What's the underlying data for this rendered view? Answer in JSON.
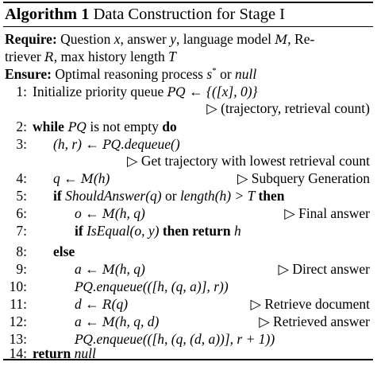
{
  "title": {
    "label": "Algorithm 1",
    "text": "Data Construction for Stage I"
  },
  "require": {
    "keyword": "Require:",
    "line1": {
      "t1": "Question ",
      "x": "x",
      "t2": ", answer ",
      "y": "y",
      "t3": ", language model ",
      "M": "M",
      "t4": ", Re-"
    },
    "line2": {
      "t1": "triever ",
      "R": "R",
      "t2": ", max history length ",
      "T": "T"
    }
  },
  "ensure": {
    "keyword": "Ensure:",
    "t1": "Optimal reasoning process ",
    "s": "s",
    "star": "*",
    "t2": " or ",
    "null": "null"
  },
  "lines": {
    "l1": {
      "num": "1:",
      "text": "Initialize priority queue ",
      "PQ": "PQ",
      "expr": " ← {([x], 0)}",
      "comment": "▷ (trajectory, retrieval count)"
    },
    "l2": {
      "num": "2:",
      "kw1": "while",
      "PQ": " PQ",
      "mid": " is not empty ",
      "kw2": "do"
    },
    "l3": {
      "num": "3:",
      "lhs": "(h, r) ← ",
      "PQ": "PQ",
      "rhs": ".dequeue()",
      "comment": "▷ Get trajectory with lowest retrieval count"
    },
    "l4": {
      "num": "4:",
      "lhs": "q ← ",
      "M": "M",
      "rhs": "(h)",
      "comment": "▷ Subquery Generation"
    },
    "l5": {
      "num": "5:",
      "kw1": "if",
      "fn1": " ShouldAnswer",
      "a1": "(q)",
      "or": " or ",
      "fn2": "length",
      "a2": "(h) > T ",
      "kw2": "then"
    },
    "l6": {
      "num": "6:",
      "lhs": "o ← ",
      "M": "M",
      "rhs": "(h, q)",
      "comment": "▷ Final answer"
    },
    "l7": {
      "num": "7:",
      "kw1": "if",
      "fn": " IsEqual",
      "args": "(o, y) ",
      "kw2": "then return",
      "ret": " h"
    },
    "l8": {
      "num": "8:",
      "kw": "else"
    },
    "l9": {
      "num": "9:",
      "lhs": "a ← ",
      "M": "M",
      "rhs": "(h, q)",
      "comment": "▷ Direct answer"
    },
    "l10": {
      "num": "10:",
      "PQ": "PQ",
      "rhs": ".enqueue(([h, (q, a)], r))"
    },
    "l11": {
      "num": "11:",
      "lhs": "d ← ",
      "R": "R",
      "rhs": "(q)",
      "comment": "▷ Retrieve document"
    },
    "l12": {
      "num": "12:",
      "lhs": "a ← ",
      "M": "M",
      "rhs": "(h, q, d)",
      "comment": "▷ Retrieved answer"
    },
    "l13": {
      "num": "13:",
      "PQ": "PQ",
      "rhs": ".enqueue(([h, (q, (d, a))], r + 1))"
    },
    "l14": {
      "num": "14:",
      "kw": "return",
      "ret": " null"
    }
  }
}
